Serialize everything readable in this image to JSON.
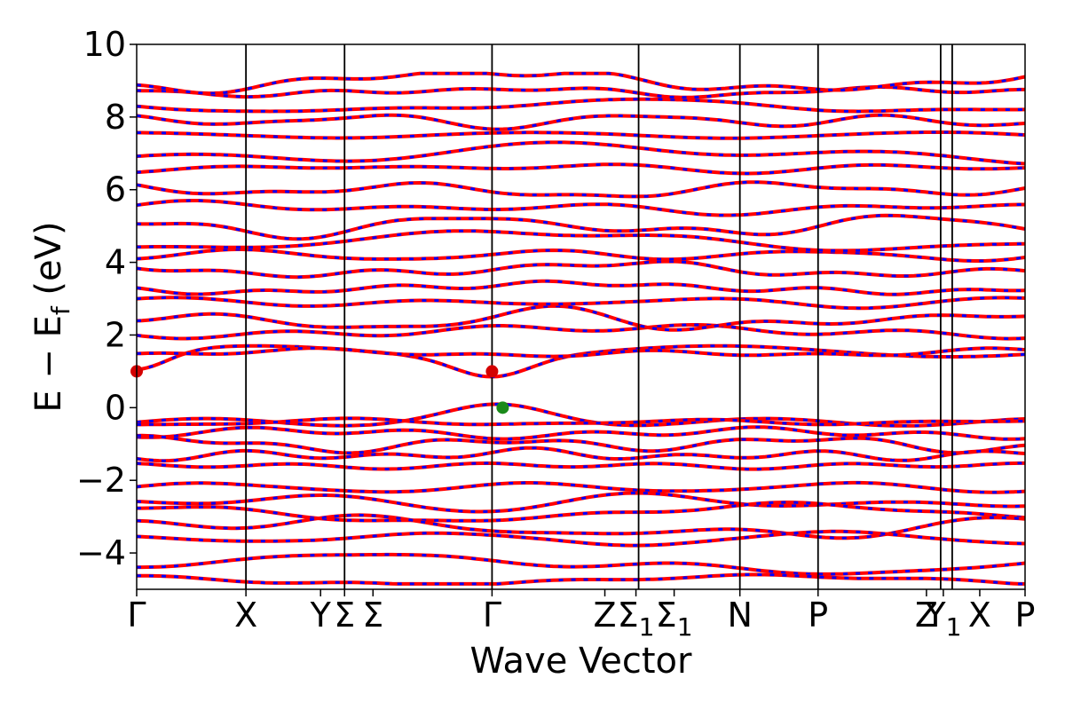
{
  "chart_data": {
    "type": "line",
    "xlabel": "Wave Vector",
    "ylabel": "E − E",
    "ylabel_sub": "f",
    "ylabel_unit": " (eV)",
    "ylim": [
      -5,
      10
    ],
    "yticks": [
      -4,
      -2,
      0,
      2,
      4,
      6,
      8,
      10
    ],
    "ytick_labels": [
      "−4",
      "−2",
      "0",
      "2",
      "4",
      "6",
      "8",
      "10"
    ],
    "xlim": [
      0,
      1
    ],
    "kpoints": [
      {
        "label": "Γ",
        "x": 0.0
      },
      {
        "label": "X",
        "x": 0.123
      },
      {
        "label": "Y",
        "x": 0.207
      },
      {
        "label": "Σ",
        "x": 0.234
      },
      {
        "label": "Σ",
        "x": 0.266
      },
      {
        "label": "Γ",
        "x": 0.4
      },
      {
        "label": "Z",
        "x": 0.527
      },
      {
        "label": "Σ",
        "x": 0.562,
        "sub": "1"
      },
      {
        "label": "Σ",
        "x": 0.605,
        "sub": "1"
      },
      {
        "label": "N",
        "x": 0.679
      },
      {
        "label": "P",
        "x": 0.767
      },
      {
        "label": "Z",
        "x": 0.889
      },
      {
        "label": "Y",
        "x": 0.908,
        "sub": "1"
      },
      {
        "label": "X",
        "x": 0.949
      },
      {
        "label": "P",
        "x": 1.0
      }
    ],
    "vlines_x": [
      0.123,
      0.234,
      0.4,
      0.565,
      0.679,
      0.767,
      0.905,
      0.918
    ],
    "series": [
      {
        "style": "red-solid",
        "valence_bands": [
          0.0,
          -0.4,
          -0.7,
          -1.0,
          -1.3,
          -1.6,
          -2.2,
          -2.6,
          -2.9,
          -3.3,
          -3.6,
          -4.3,
          -4.75
        ],
        "conduction_bands": [
          1.0,
          1.5,
          2.1,
          2.4,
          2.9,
          3.3,
          3.8,
          4.2,
          4.6,
          5.0,
          5.5,
          6.0,
          6.6,
          7.0,
          7.5,
          7.9,
          8.3,
          8.7,
          9.0
        ]
      },
      {
        "style": "blue-dashed"
      }
    ],
    "markers": [
      {
        "x": 0.0,
        "y": 1.0,
        "color": "#d40000"
      },
      {
        "x": 0.4,
        "y": 1.0,
        "color": "#d40000"
      },
      {
        "x": 0.412,
        "y": 0.0,
        "color": "#1a8a1a"
      }
    ],
    "grid": false,
    "colors": {
      "band_solid": "#ff0000",
      "band_dashed": "#0000ff",
      "vline": "#000000"
    }
  }
}
